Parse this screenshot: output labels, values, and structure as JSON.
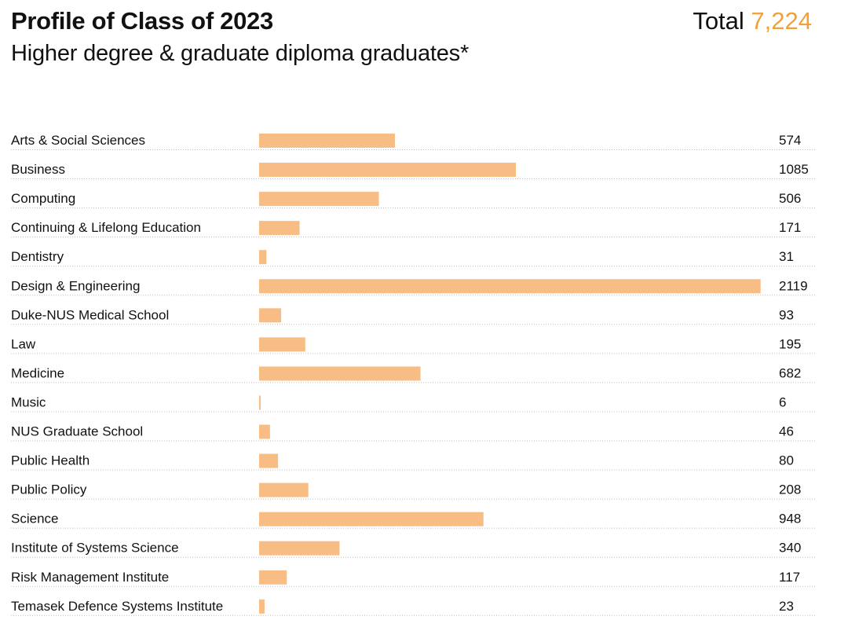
{
  "header": {
    "title": "Profile of Class of 2023",
    "subtitle": "Higher degree & graduate diploma graduates*",
    "total_label": "Total",
    "total_value": "7,224"
  },
  "colors": {
    "bar": "#f7bd85",
    "accent": "#f0a23a",
    "text": "#111111",
    "divider": "#bdbdbd"
  },
  "chart_data": {
    "type": "bar",
    "orientation": "horizontal",
    "grid": false,
    "legend": "none",
    "categories": [
      "Arts & Social Sciences",
      "Business",
      "Computing",
      "Continuing & Lifelong Education",
      "Dentistry",
      "Design & Engineering",
      "Duke-NUS Medical School",
      "Law",
      "Medicine",
      "Music",
      "NUS Graduate School",
      "Public Health",
      "Public Policy",
      "Science",
      "Institute of Systems Science",
      "Risk Management Institute",
      "Temasek Defence Systems Institute"
    ],
    "values": [
      574,
      1085,
      506,
      171,
      31,
      2119,
      93,
      195,
      682,
      6,
      46,
      80,
      208,
      948,
      340,
      117,
      23
    ]
  }
}
